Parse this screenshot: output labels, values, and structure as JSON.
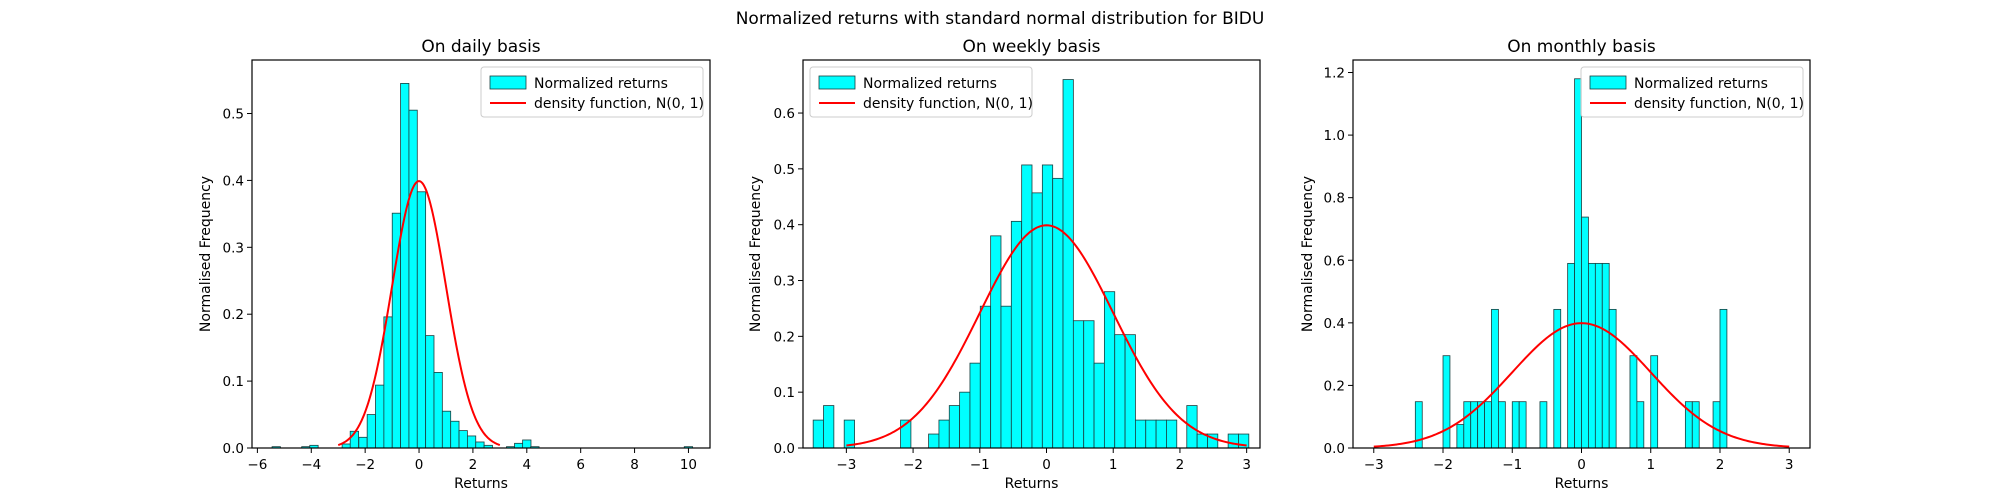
{
  "figure": {
    "suptitle": "Normalized returns with standard normal distribution for BIDU"
  },
  "colors": {
    "bar_fill": "#00FFFF",
    "bar_edge": "#1a3f3f",
    "curve": "#FF0000",
    "axis": "#000000",
    "legend_border": "#cccccc"
  },
  "chart_data": [
    {
      "type": "bar",
      "title": "On daily basis",
      "xlabel": "Returns",
      "ylabel": "Normalised Frequency",
      "xlim": [
        -6.2,
        10.8
      ],
      "ylim": [
        0,
        0.58
      ],
      "xticks": [
        -6,
        -4,
        -2,
        0,
        2,
        4,
        6,
        8,
        10
      ],
      "yticks": [
        0.0,
        0.1,
        0.2,
        0.3,
        0.4,
        0.5
      ],
      "xtick_labels": [
        "−6",
        "−4",
        "−2",
        "0",
        "2",
        "4",
        "6",
        "8",
        "10"
      ],
      "ytick_labels": [
        "0.0",
        "0.1",
        "0.2",
        "0.3",
        "0.4",
        "0.5"
      ],
      "legend": [
        "Normalized returns",
        "density function, N(0, 1)"
      ],
      "legend_position": "top-right",
      "bin_width": 0.31,
      "bins": [
        [
          -5.3,
          0.002
        ],
        [
          -4.2,
          0.002
        ],
        [
          -3.9,
          0.004
        ],
        [
          -2.7,
          0.006
        ],
        [
          -2.4,
          0.025
        ],
        [
          -2.08,
          0.016
        ],
        [
          -1.77,
          0.05
        ],
        [
          -1.46,
          0.094
        ],
        [
          -1.15,
          0.196
        ],
        [
          -0.84,
          0.351
        ],
        [
          -0.53,
          0.545
        ],
        [
          -0.22,
          0.505
        ],
        [
          0.09,
          0.383
        ],
        [
          0.4,
          0.168
        ],
        [
          0.71,
          0.113
        ],
        [
          1.02,
          0.055
        ],
        [
          1.33,
          0.04
        ],
        [
          1.64,
          0.026
        ],
        [
          1.95,
          0.018
        ],
        [
          2.26,
          0.009
        ],
        [
          2.57,
          0.004
        ],
        [
          3.4,
          0.002
        ],
        [
          3.7,
          0.007
        ],
        [
          4.0,
          0.012
        ],
        [
          4.3,
          0.002
        ],
        [
          10.0,
          0.002
        ]
      ],
      "curve": {
        "name": "density function, N(0, 1)",
        "mean": 0,
        "std": 1,
        "x_range": [
          -3,
          3
        ]
      }
    },
    {
      "type": "bar",
      "title": "On weekly basis",
      "xlabel": "Returns",
      "ylabel": "Normalised Frequency",
      "xlim": [
        -3.65,
        3.2
      ],
      "ylim": [
        0,
        0.695
      ],
      "xticks": [
        -3,
        -2,
        -1,
        0,
        1,
        2,
        3
      ],
      "yticks": [
        0.0,
        0.1,
        0.2,
        0.3,
        0.4,
        0.5,
        0.6
      ],
      "xtick_labels": [
        "−3",
        "−2",
        "−1",
        "0",
        "1",
        "2",
        "3"
      ],
      "ytick_labels": [
        "0.0",
        "0.1",
        "0.2",
        "0.3",
        "0.4",
        "0.5",
        "0.6"
      ],
      "legend": [
        "Normalized returns",
        "density function, N(0, 1)"
      ],
      "legend_position": "top-left",
      "bin_width": 0.155,
      "bins": [
        [
          -3.42,
          0.05
        ],
        [
          -3.265,
          0.076
        ],
        [
          -2.955,
          0.05
        ],
        [
          -2.11,
          0.05
        ],
        [
          -1.69,
          0.025
        ],
        [
          -1.535,
          0.05
        ],
        [
          -1.38,
          0.076
        ],
        [
          -1.225,
          0.1
        ],
        [
          -1.07,
          0.152
        ],
        [
          -0.915,
          0.254
        ],
        [
          -0.76,
          0.38
        ],
        [
          -0.605,
          0.254
        ],
        [
          -0.45,
          0.406
        ],
        [
          -0.295,
          0.507
        ],
        [
          -0.14,
          0.457
        ],
        [
          0.015,
          0.507
        ],
        [
          0.17,
          0.483
        ],
        [
          0.325,
          0.66
        ],
        [
          0.48,
          0.228
        ],
        [
          0.635,
          0.228
        ],
        [
          0.79,
          0.152
        ],
        [
          0.945,
          0.28
        ],
        [
          1.1,
          0.203
        ],
        [
          1.255,
          0.203
        ],
        [
          1.41,
          0.05
        ],
        [
          1.565,
          0.05
        ],
        [
          1.72,
          0.05
        ],
        [
          1.875,
          0.05
        ],
        [
          2.18,
          0.076
        ],
        [
          2.335,
          0.025
        ],
        [
          2.49,
          0.025
        ],
        [
          2.8,
          0.025
        ],
        [
          2.955,
          0.025
        ]
      ],
      "curve": {
        "name": "density function, N(0, 1)",
        "mean": 0,
        "std": 1,
        "x_range": [
          -3,
          3
        ]
      }
    },
    {
      "type": "bar",
      "title": "On monthly basis",
      "xlabel": "Returns",
      "ylabel": "Normalised Frequency",
      "xlim": [
        -3.3,
        3.3
      ],
      "ylim": [
        0,
        1.24
      ],
      "xticks": [
        -3,
        -2,
        -1,
        0,
        1,
        2,
        3
      ],
      "yticks": [
        0.0,
        0.2,
        0.4,
        0.6,
        0.8,
        1.0,
        1.2
      ],
      "xtick_labels": [
        "−3",
        "−2",
        "−1",
        "0",
        "1",
        "2",
        "3"
      ],
      "ytick_labels": [
        "0.0",
        "0.2",
        "0.4",
        "0.6",
        "0.8",
        "1.0",
        "1.2"
      ],
      "legend": [
        "Normalized returns",
        "density function, N(0, 1)"
      ],
      "legend_position": "top-right",
      "bin_width": 0.1,
      "bins": [
        [
          -2.35,
          0.148
        ],
        [
          -1.95,
          0.295
        ],
        [
          -1.75,
          0.075
        ],
        [
          -1.65,
          0.148
        ],
        [
          -1.55,
          0.148
        ],
        [
          -1.45,
          0.148
        ],
        [
          -1.35,
          0.148
        ],
        [
          -1.25,
          0.443
        ],
        [
          -1.15,
          0.148
        ],
        [
          -0.95,
          0.148
        ],
        [
          -0.85,
          0.148
        ],
        [
          -0.55,
          0.148
        ],
        [
          -0.35,
          0.443
        ],
        [
          -0.15,
          0.59
        ],
        [
          -0.05,
          1.18
        ],
        [
          0.05,
          0.738
        ],
        [
          0.15,
          0.59
        ],
        [
          0.25,
          0.59
        ],
        [
          0.35,
          0.59
        ],
        [
          0.45,
          0.443
        ],
        [
          0.75,
          0.295
        ],
        [
          0.85,
          0.148
        ],
        [
          1.05,
          0.295
        ],
        [
          1.55,
          0.148
        ],
        [
          1.65,
          0.148
        ],
        [
          1.95,
          0.148
        ],
        [
          2.05,
          0.443
        ]
      ],
      "curve": {
        "name": "density function, N(0, 1)",
        "mean": 0,
        "std": 1,
        "x_range": [
          -3,
          3
        ]
      }
    }
  ]
}
